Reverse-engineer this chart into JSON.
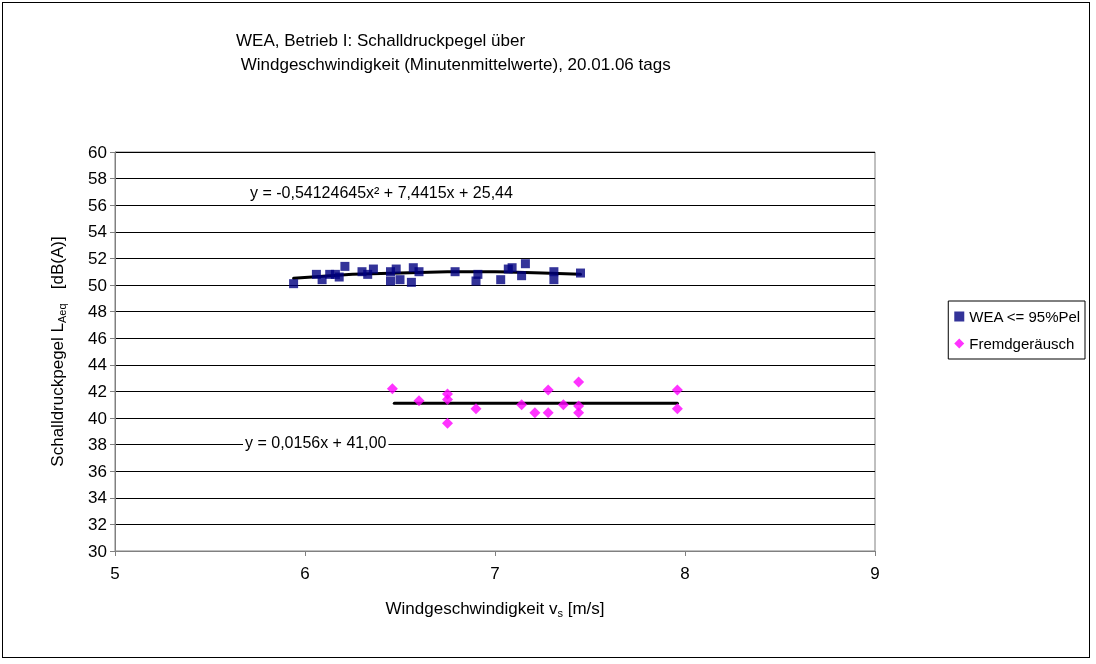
{
  "chart_data": {
    "type": "scatter",
    "title": "WEA, Betrieb I: Schalldruckpegel über\n Windgeschwindigkeit (Minutenmittelwerte), 20.01.06 tags",
    "xlabel": "Windgeschwindigkeit v$_{s}$ [m/s]",
    "ylabel": "Schalldruckpegel L$_{Aeq}$   [dB(A)]",
    "series": [
      {
        "name": "WEA <= 95%Pel",
        "color": "#000080",
        "marker": "square",
        "x": [
          5.94,
          6.06,
          6.09,
          6.13,
          6.16,
          6.18,
          6.21,
          6.3,
          6.33,
          6.36,
          6.45,
          6.45,
          6.48,
          6.5,
          6.56,
          6.57,
          6.6,
          6.79,
          6.9,
          6.91,
          7.03,
          7.07,
          7.09,
          7.14,
          7.16,
          7.31,
          7.31,
          7.45
        ],
        "values": [
          50.1,
          50.8,
          50.4,
          50.8,
          50.8,
          50.6,
          51.4,
          51.0,
          50.8,
          51.2,
          51.0,
          50.3,
          51.2,
          50.4,
          50.2,
          51.3,
          51.0,
          51.0,
          50.3,
          50.8,
          50.4,
          51.2,
          51.3,
          50.7,
          51.6,
          51.0,
          50.4,
          50.9
        ]
      },
      {
        "name": "Fremdgeräusch",
        "color": "#ff00ff",
        "marker": "diamond",
        "x": [
          6.46,
          6.6,
          6.75,
          6.75,
          6.75,
          6.9,
          7.14,
          7.21,
          7.28,
          7.28,
          7.36,
          7.44,
          7.44,
          7.44,
          7.96,
          7.96
        ],
        "values": [
          42.2,
          41.3,
          41.8,
          41.4,
          39.6,
          40.7,
          41.0,
          40.4,
          42.1,
          40.4,
          41.0,
          42.7,
          40.9,
          40.4,
          42.1,
          40.7
        ]
      },
      {
        "type": "line",
        "color": "#000000",
        "marker": "none",
        "x": [
          5.94,
          6.25,
          6.5,
          6.75,
          7.0,
          7.25,
          7.45
        ],
        "values": [
          50.5,
          50.8,
          50.9,
          51.0,
          51.0,
          50.9,
          50.8
        ]
      },
      {
        "type": "line",
        "color": "#000000",
        "marker": "none",
        "x": [
          6.47,
          7.96
        ],
        "values": [
          41.1,
          41.1
        ]
      }
    ],
    "annotations": [
      "y = -0,54124645x² + 7,4415x + 25,44",
      "y = 0,0156x + 41,00"
    ],
    "xlim": [
      5,
      9
    ],
    "xticks": [
      5,
      6,
      7,
      8,
      9
    ],
    "ylim": [
      30,
      60
    ],
    "yticks": [
      30,
      32,
      34,
      36,
      38,
      40,
      42,
      44,
      46,
      48,
      50,
      52,
      54,
      56,
      58,
      60
    ],
    "grid": "y",
    "legend": "right"
  }
}
